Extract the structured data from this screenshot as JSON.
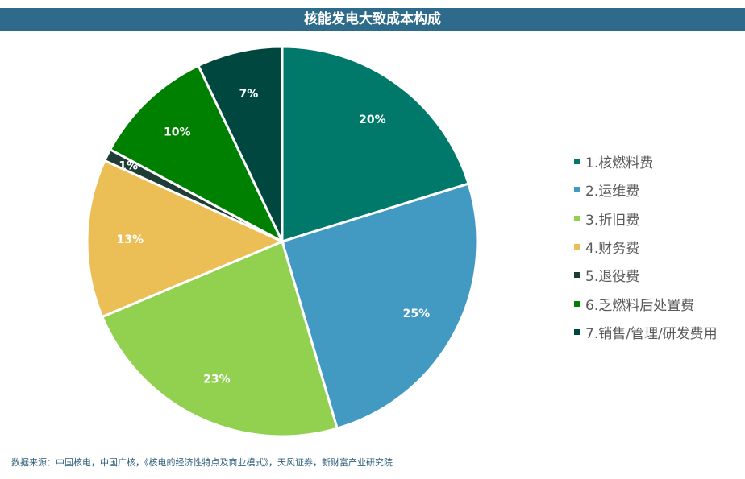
{
  "title": "核能发电大致成本构成",
  "chart_data": {
    "type": "pie",
    "title": "核能发电大致成本构成",
    "slices": [
      {
        "label": "1.核燃料费",
        "value": 20,
        "value_label": "20%",
        "color": "#00796b"
      },
      {
        "label": "2.运维费",
        "value": 25,
        "value_label": "25%",
        "color": "#429ac3"
      },
      {
        "label": "3.折旧费",
        "value": 23,
        "value_label": "23%",
        "color": "#92d050"
      },
      {
        "label": "4.财务费",
        "value": 13,
        "value_label": "13%",
        "color": "#ebbf55"
      },
      {
        "label": "5.退役费",
        "value": 1,
        "value_label": "1%",
        "color": "#1f3d36"
      },
      {
        "label": "6.乏燃料后处置费",
        "value": 10,
        "value_label": "10%",
        "color": "#008000"
      },
      {
        "label": "7.销售/管理/研发费用",
        "value": 7,
        "value_label": "7%",
        "color": "#00473f"
      }
    ],
    "legend_position": "right"
  },
  "source": "数据来源：中国核电，中国广核，《核电的经济性特点及商业模式》，天风证券，新财富产业研究院"
}
